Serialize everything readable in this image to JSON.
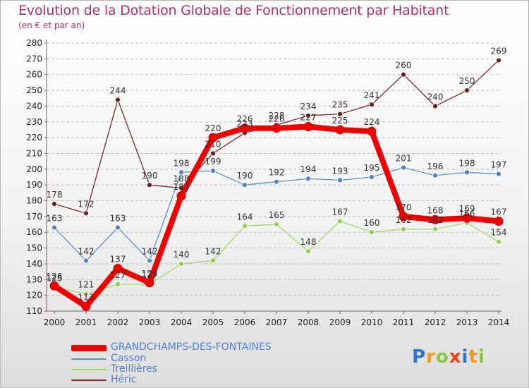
{
  "title": "Evolution de la Dotation Globale de Fonctionnement par Habitant",
  "subtitle": "(en € et par an)",
  "logo": {
    "text": "Proxiti",
    "letters": [
      {
        "ch": "P",
        "color": "#2f74c9"
      },
      {
        "ch": "r",
        "color": "#f29a1c"
      },
      {
        "ch": "o",
        "color": "#8cc63f"
      },
      {
        "ch": "x",
        "color": "#e8401c"
      },
      {
        "ch": "i",
        "color": "#2f74c9"
      },
      {
        "ch": "t",
        "color": "#f29a1c"
      },
      {
        "ch": "i",
        "color": "#8cc63f"
      }
    ]
  },
  "chart_data": {
    "type": "line",
    "title": "Evolution de la Dotation Globale de Fonctionnement par Habitant",
    "subtitle": "(en € et par an)",
    "xlabel": "",
    "ylabel": "",
    "x": [
      "2000",
      "2001",
      "2002",
      "2003",
      "2004",
      "2005",
      "2006",
      "2007",
      "2008",
      "2009",
      "2010",
      "2011",
      "2012",
      "2013",
      "2014"
    ],
    "ylim": [
      110,
      280
    ],
    "yticks": [
      110,
      120,
      130,
      140,
      150,
      160,
      170,
      180,
      190,
      200,
      210,
      220,
      230,
      240,
      250,
      260,
      270,
      280
    ],
    "grid": "horizontal-dashed",
    "legend_position": "bottom-left",
    "series": [
      {
        "name": "GRANDCHAMPS-DES-FONTAINES",
        "color": "#ee0000",
        "marker_color": "#ee0000",
        "emphasis": true,
        "values": [
          126,
          113,
          137,
          128,
          183,
          220,
          226,
          226,
          227,
          225,
          224,
          170,
          168,
          169,
          167
        ],
        "labels": [
          "126",
          "113",
          "137",
          "128",
          "183",
          "220",
          "226",
          "226",
          "227",
          "225",
          "224",
          "170",
          "168",
          "169",
          "167"
        ]
      },
      {
        "name": "Casson",
        "color": "#5d92c6",
        "marker_color": "#4a86c5",
        "emphasis": false,
        "values": [
          163,
          142,
          163,
          142,
          198,
          199,
          190,
          192,
          194,
          193,
          195,
          201,
          196,
          198,
          197
        ],
        "labels": [
          "163",
          "142",
          "163",
          "142",
          "198",
          "199",
          "190",
          "192",
          "194",
          "193",
          "195",
          "201",
          "196",
          "198",
          "197"
        ]
      },
      {
        "name": "Treillières",
        "color": "#a6d66a",
        "marker_color": "#8fcf4f",
        "emphasis": false,
        "values": [
          125,
          121,
          127,
          127,
          140,
          142,
          164,
          165,
          148,
          167,
          160,
          162,
          162,
          166,
          154
        ],
        "labels": [
          "125",
          "121",
          "127",
          "127",
          "140",
          "142",
          "164",
          "165",
          "148",
          "167",
          "160",
          "162",
          "162",
          "166",
          "154"
        ]
      },
      {
        "name": "Héric",
        "color": "#7b2a2a",
        "marker_color": "#6b1f1f",
        "emphasis": false,
        "values": [
          178,
          172,
          244,
          190,
          188,
          210,
          223,
          228,
          234,
          235,
          241,
          260,
          240,
          250,
          269
        ],
        "labels": [
          "178",
          "172",
          "244",
          "190",
          "188",
          "210",
          "223",
          "228",
          "234",
          "235",
          "241",
          "260",
          "240",
          "250",
          "269"
        ]
      }
    ]
  }
}
